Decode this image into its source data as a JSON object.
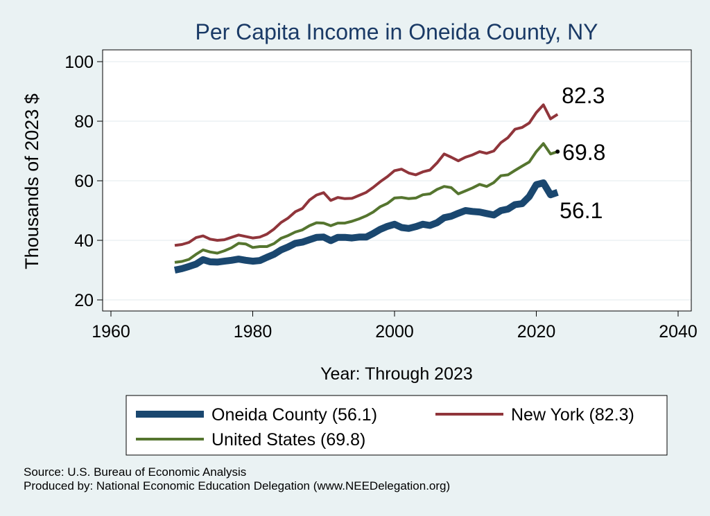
{
  "chart_data": {
    "type": "line",
    "title": "Per Capita Income in Oneida County, NY",
    "xlabel": "Year: Through 2023",
    "ylabel": "Thousands of 2023 $",
    "xlim": [
      1960,
      2040
    ],
    "ylim": [
      20,
      100
    ],
    "xticks": [
      "1960",
      "1980",
      "2000",
      "2020",
      "2040"
    ],
    "yticks": [
      "20",
      "40",
      "60",
      "80",
      "100"
    ],
    "grid": true,
    "legend_position": "bottom",
    "x": [
      1969,
      1970,
      1971,
      1972,
      1973,
      1974,
      1975,
      1976,
      1977,
      1978,
      1979,
      1980,
      1981,
      1982,
      1983,
      1984,
      1985,
      1986,
      1987,
      1988,
      1989,
      1990,
      1991,
      1992,
      1993,
      1994,
      1995,
      1996,
      1997,
      1998,
      1999,
      2000,
      2001,
      2002,
      2003,
      2004,
      2005,
      2006,
      2007,
      2008,
      2009,
      2010,
      2011,
      2012,
      2013,
      2014,
      2015,
      2016,
      2017,
      2018,
      2019,
      2020,
      2021,
      2022,
      2023
    ],
    "series": [
      {
        "name": "Oneida County (56.1)",
        "color": "#1a476f",
        "end_label": "56.1",
        "values": [
          30.0,
          30.5,
          31.2,
          32.0,
          33.5,
          32.8,
          32.7,
          33.0,
          33.3,
          33.7,
          33.3,
          33.0,
          33.2,
          34.3,
          35.3,
          36.8,
          37.8,
          39.0,
          39.4,
          40.2,
          41.0,
          41.1,
          39.9,
          41.0,
          41.0,
          40.8,
          41.1,
          41.1,
          42.3,
          43.7,
          44.7,
          45.4,
          44.3,
          44.0,
          44.6,
          45.4,
          45.0,
          45.9,
          47.6,
          48.1,
          49.1,
          50.0,
          49.7,
          49.5,
          49.0,
          48.5,
          50.0,
          50.5,
          52.0,
          52.3,
          54.7,
          58.7,
          59.3,
          55.3,
          56.1
        ]
      },
      {
        "name": "New York (82.3)",
        "color": "#90353b",
        "end_label": "82.3",
        "values": [
          38.3,
          38.6,
          39.3,
          40.9,
          41.5,
          40.4,
          40.0,
          40.2,
          41.0,
          41.8,
          41.3,
          40.8,
          41.1,
          42.1,
          43.8,
          46.0,
          47.5,
          49.6,
          50.7,
          53.5,
          55.2,
          56.0,
          53.4,
          54.4,
          54.0,
          54.1,
          55.1,
          56.1,
          57.8,
          59.7,
          61.4,
          63.4,
          63.9,
          62.6,
          62.0,
          63.0,
          63.6,
          66.0,
          69.0,
          67.9,
          66.7,
          67.9,
          68.7,
          69.8,
          69.2,
          70.0,
          72.8,
          74.5,
          77.3,
          77.9,
          79.4,
          82.9,
          85.5,
          80.8,
          82.3
        ]
      },
      {
        "name": "United States (69.8)",
        "color": "#55752f",
        "end_label": "69.8",
        "values": [
          32.6,
          32.9,
          33.6,
          35.3,
          36.8,
          36.1,
          35.7,
          36.5,
          37.5,
          39.0,
          38.8,
          37.6,
          37.9,
          37.9,
          38.9,
          40.7,
          41.6,
          42.8,
          43.5,
          44.9,
          45.9,
          45.8,
          44.9,
          45.8,
          45.8,
          46.4,
          47.2,
          48.2,
          49.5,
          51.3,
          52.4,
          54.2,
          54.4,
          54.0,
          54.2,
          55.3,
          55.6,
          57.1,
          58.1,
          57.7,
          55.6,
          56.6,
          57.6,
          58.8,
          58.1,
          59.4,
          61.7,
          62.0,
          63.5,
          64.9,
          66.3,
          69.8,
          72.5,
          69.0,
          69.8
        ]
      }
    ]
  },
  "source_line": "Source: U.S. Bureau of Economic Analysis",
  "produced_line": "Produced by: National Economic Education Delegation (www.NEEDelegation.org)"
}
